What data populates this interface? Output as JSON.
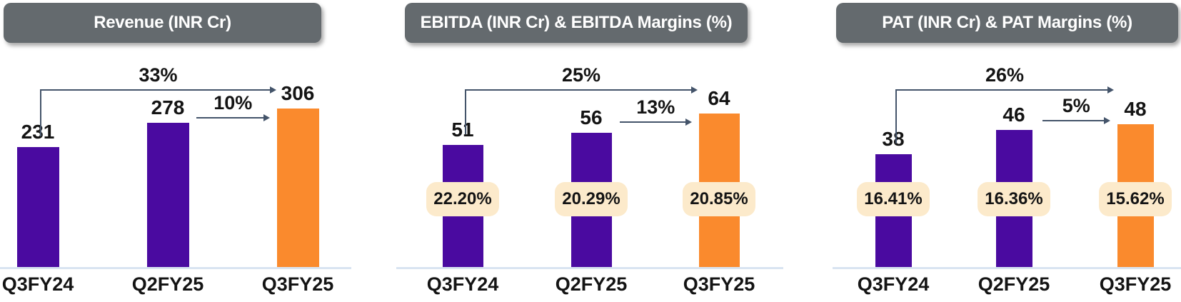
{
  "colors": {
    "bar_primary": "#4A0AA0",
    "bar_highlight": "#FA8A2D",
    "header_bg": "#646A6E",
    "header_text": "#FFFFFF",
    "badge_bg": "#FCEACB",
    "axis_line": "#D9E4F1",
    "arrow": "#44546A",
    "text": "#141414"
  },
  "chart_data": [
    {
      "type": "bar",
      "title": "Revenue (INR Cr)",
      "categories": [
        "Q3FY24",
        "Q2FY25",
        "Q3FY25"
      ],
      "values": [
        231,
        278,
        306
      ],
      "value_labels": [
        "231",
        "278",
        "306"
      ],
      "unit": "INR Cr",
      "bar_colors": [
        "#4A0AA0",
        "#4A0AA0",
        "#FA8A2D"
      ],
      "growth_arrows": [
        {
          "label": "33%",
          "from": "Q3FY24",
          "to": "Q3FY25",
          "from_index": 0,
          "to_index": 2
        },
        {
          "label": "10%",
          "from": "Q2FY25",
          "to": "Q3FY25",
          "from_index": 1,
          "to_index": 2
        }
      ],
      "ylim": [
        0,
        306
      ],
      "grid": false,
      "legend": false
    },
    {
      "type": "bar",
      "title": "EBITDA (INR Cr) & EBITDA Margins (%)",
      "categories": [
        "Q3FY24",
        "Q2FY25",
        "Q3FY25"
      ],
      "values": [
        51,
        56,
        64
      ],
      "value_labels": [
        "51",
        "56",
        "64"
      ],
      "unit": "INR Cr",
      "margin_labels": [
        "22.20%",
        "20.29%",
        "20.85%"
      ],
      "margins_pct": [
        22.2,
        20.29,
        20.85
      ],
      "bar_colors": [
        "#4A0AA0",
        "#4A0AA0",
        "#FA8A2D"
      ],
      "growth_arrows": [
        {
          "label": "25%",
          "from": "Q3FY24",
          "to": "Q3FY25",
          "from_index": 0,
          "to_index": 2
        },
        {
          "label": "13%",
          "from": "Q2FY25",
          "to": "Q3FY25",
          "from_index": 1,
          "to_index": 2
        }
      ],
      "ylim": [
        0,
        64
      ],
      "grid": false,
      "legend": false
    },
    {
      "type": "bar",
      "title": "PAT (INR Cr) & PAT Margins (%)",
      "categories": [
        "Q3FY24",
        "Q2FY25",
        "Q3FY25"
      ],
      "values": [
        38,
        46,
        48
      ],
      "value_labels": [
        "38",
        "46",
        "48"
      ],
      "unit": "INR Cr",
      "margin_labels": [
        "16.41%",
        "16.36%",
        "15.62%"
      ],
      "margins_pct": [
        16.41,
        16.36,
        15.62
      ],
      "bar_colors": [
        "#4A0AA0",
        "#4A0AA0",
        "#FA8A2D"
      ],
      "growth_arrows": [
        {
          "label": "26%",
          "from": "Q3FY24",
          "to": "Q3FY25",
          "from_index": 0,
          "to_index": 2
        },
        {
          "label": "5%",
          "from": "Q2FY25",
          "to": "Q3FY25",
          "from_index": 1,
          "to_index": 2
        }
      ],
      "ylim": [
        0,
        48
      ],
      "grid": false,
      "legend": false
    }
  ]
}
